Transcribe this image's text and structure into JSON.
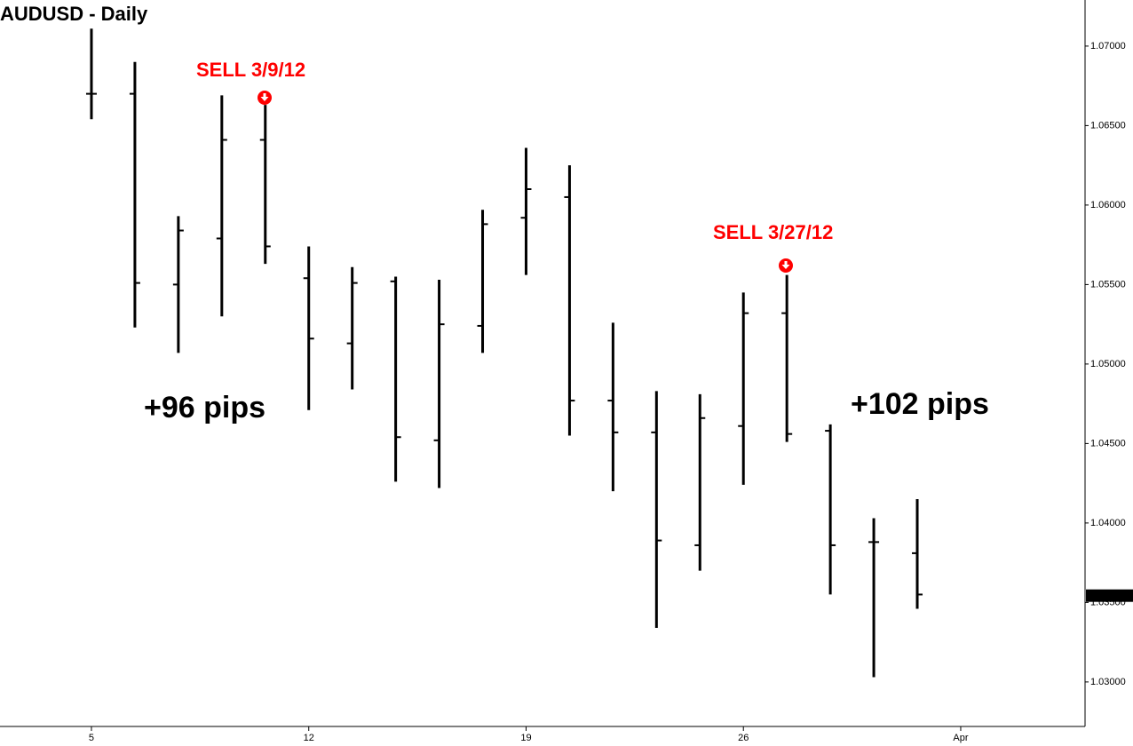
{
  "chart_data": {
    "type": "ohlc",
    "title": "AUDUSD - Daily",
    "categories": [
      "5",
      null,
      null,
      null,
      null,
      "12",
      null,
      null,
      null,
      null,
      "19",
      null,
      null,
      null,
      null,
      "26",
      null,
      null,
      null,
      null,
      "Apr"
    ],
    "open": [
      1.067,
      1.067,
      1.055,
      1.0579,
      1.0641,
      1.0554,
      1.0513,
      1.0552,
      1.0452,
      1.0524,
      1.0592,
      1.0605,
      1.0477,
      1.0457,
      1.0386,
      1.0461,
      1.0532,
      1.0458,
      1.0388,
      1.0381,
      null
    ],
    "high": [
      1.0711,
      1.069,
      1.0593,
      1.0669,
      1.0663,
      1.0574,
      1.0561,
      1.0555,
      1.0553,
      1.0597,
      1.0636,
      1.0625,
      1.0526,
      1.0483,
      1.0481,
      1.0545,
      1.0556,
      1.0462,
      1.0403,
      1.0415,
      null
    ],
    "low": [
      1.0654,
      1.0523,
      1.0507,
      1.053,
      1.0563,
      1.0471,
      1.0484,
      1.0426,
      1.0422,
      1.0507,
      1.0556,
      1.0455,
      1.042,
      1.0334,
      1.037,
      1.0424,
      1.0451,
      1.0355,
      1.0303,
      1.0346,
      null
    ],
    "close": [
      1.067,
      1.0551,
      1.0584,
      1.0641,
      1.0574,
      1.0516,
      1.0551,
      1.0454,
      1.0525,
      1.0588,
      1.061,
      1.0477,
      1.0457,
      1.0389,
      1.0466,
      1.0532,
      1.0456,
      1.0386,
      1.0388,
      1.0355,
      null
    ],
    "color": "#000000",
    "ylim": [
      1.0272,
      1.0729
    ],
    "yticks": [
      {
        "value": 1.03,
        "label": "1.03000"
      },
      {
        "value": 1.035,
        "label": "1.03500"
      },
      {
        "value": 1.04,
        "label": "1.04000"
      },
      {
        "value": 1.045,
        "label": "1.04500"
      },
      {
        "value": 1.05,
        "label": "1.05000"
      },
      {
        "value": 1.055,
        "label": "1.05500"
      },
      {
        "value": 1.06,
        "label": "1.06000"
      },
      {
        "value": 1.065,
        "label": "1.06500"
      },
      {
        "value": 1.07,
        "label": "1.07000"
      }
    ],
    "last_price": {
      "value": 1.03543,
      "label": "1.03543"
    },
    "annotations": [
      {
        "text": "SELL 3/9/12",
        "color": "#ff0000"
      },
      {
        "text": "SELL 3/27/12",
        "color": "#ff0000"
      },
      {
        "text": "+96 pips",
        "color": "#000000"
      },
      {
        "text": "+102 pips",
        "color": "#000000"
      }
    ]
  }
}
